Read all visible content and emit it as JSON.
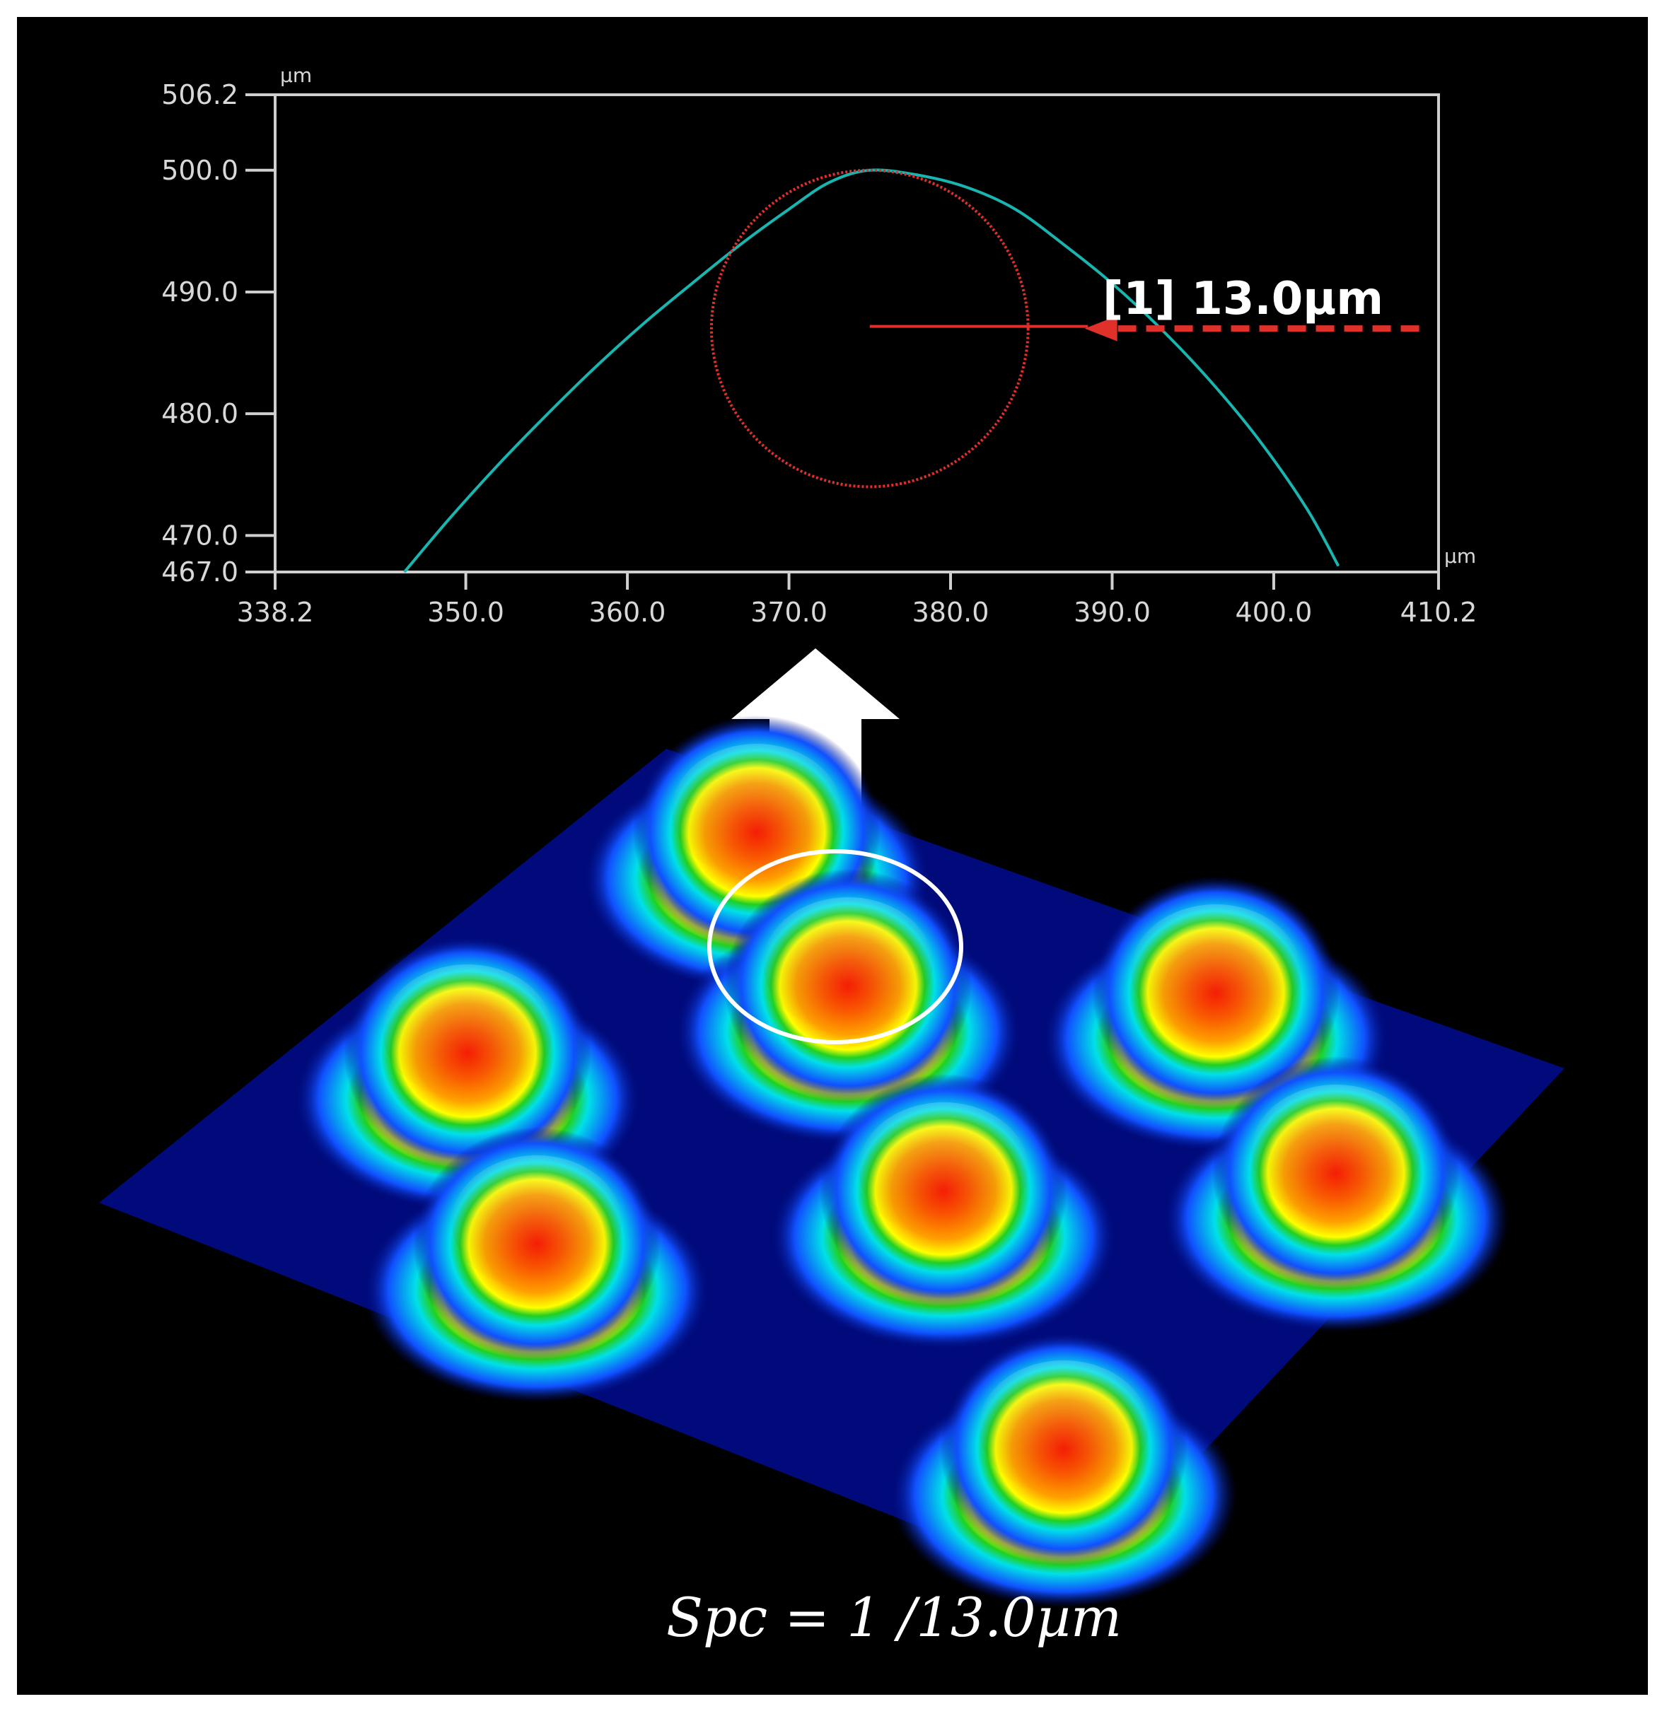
{
  "chart_data": {
    "type": "line",
    "title": "",
    "xlabel": "",
    "ylabel": "",
    "x_unit": "µm",
    "y_unit": "µm",
    "xlim": [
      338.2,
      410.2
    ],
    "ylim": [
      467.0,
      506.2
    ],
    "xticks": [
      338.2,
      350.0,
      360.0,
      370.0,
      380.0,
      390.0,
      400.0,
      410.2
    ],
    "yticks": [
      467.0,
      470.0,
      480.0,
      490.0,
      500.0,
      506.2
    ],
    "xtick_labels": [
      "338.2",
      "350.0",
      "360.0",
      "370.0",
      "380.0",
      "390.0",
      "400.0",
      "410.2"
    ],
    "ytick_labels": [
      "467.0",
      "470.0",
      "480.0",
      "490.0",
      "500.0",
      "506.2"
    ],
    "grid": false,
    "series": [
      {
        "color": "#19b6b1",
        "x": [
          346.2,
          349.0,
          352.0,
          355.0,
          358.0,
          361.0,
          364.0,
          367.0,
          370.0,
          372.5,
          375.0,
          378.0,
          381.0,
          384.0,
          387.0,
          390.0,
          393.0,
          396.0,
          399.0,
          402.0,
          404.0
        ],
        "y": [
          467.0,
          471.4,
          475.8,
          479.9,
          483.8,
          487.4,
          490.7,
          493.9,
          496.8,
          499.0,
          500.0,
          499.6,
          498.6,
          496.8,
          493.9,
          490.7,
          487.0,
          482.8,
          478.0,
          472.3,
          467.5
        ]
      }
    ],
    "fitted_circle": {
      "center_x": 375.0,
      "center_y": 487.0,
      "radius": 13.0,
      "color": "#e0302a"
    },
    "annotation": {
      "label": "[1]  13.0µm",
      "from_x": 375.0,
      "to_x": 409.0,
      "y": 487.0,
      "color": "#e0302a"
    }
  },
  "surface": {
    "peak_count": 8,
    "colors": {
      "base": "#000a7a",
      "highlight": "#ffffff"
    },
    "colormap": [
      "#000a7a",
      "#1040ff",
      "#00d8ff",
      "#10d020",
      "#ffff00",
      "#ff9a00",
      "#ff1a00"
    ]
  },
  "formula": "Spc = 1 /13.0µm"
}
